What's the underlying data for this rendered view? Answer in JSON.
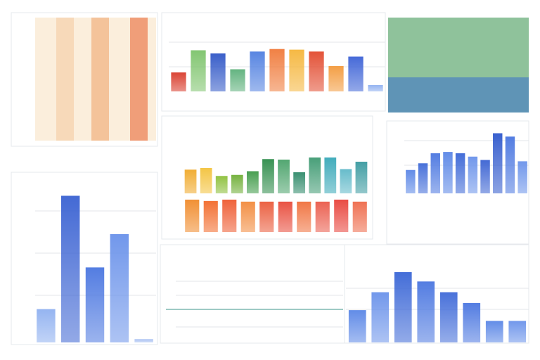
{
  "chart_data": [
    {
      "type": "bar",
      "ylim": [
        0,
        100
      ],
      "values": [
        30,
        65,
        60,
        35,
        63,
        67,
        66,
        63,
        40,
        55,
        10
      ],
      "colors": [
        "#d83a2a",
        "#7cc36a",
        "#2f56c6",
        "#5cb07a",
        "#4f7fe0",
        "#f07a3a",
        "#f5b53a",
        "#e24a2e",
        "#f39a3c",
        "#3c62d6",
        "#8fb0f0"
      ]
    },
    {
      "type": "bar",
      "ylim": [
        0,
        100
      ],
      "values": [
        45,
        48,
        33,
        35,
        42,
        65,
        64,
        40,
        68,
        68,
        46,
        60
      ],
      "colors": [
        "#f0a92a",
        "#f3c23c",
        "#8cbf3a",
        "#6fae36",
        "#3f9a48",
        "#2e8c4a",
        "#4aa26a",
        "#2f8a6a",
        "#3f9a72",
        "#38a8b8",
        "#5fb8c8",
        "#3a9aa0"
      ]
    },
    {
      "type": "bar",
      "ylim": [
        0,
        100
      ],
      "values": [
        96,
        92,
        96,
        90,
        90,
        90,
        90,
        90,
        96,
        90
      ],
      "colors": [
        "#f08a2a",
        "#f26a2a",
        "#ee5a30",
        "#f28a3c",
        "#ea5a3a",
        "#e84a3a",
        "#f0703c",
        "#ea5a4a",
        "#e8423a",
        "#ee6a4a"
      ]
    },
    {
      "type": "bar",
      "ylim": [
        0,
        100
      ],
      "values": [
        35,
        45,
        60,
        62,
        60,
        55,
        50,
        90,
        85,
        48
      ],
      "colors": [
        "#5a86e6",
        "#3f6ad8",
        "#4a76e0",
        "#5a86e6",
        "#3a66d6",
        "#6a92ea",
        "#3a62d2",
        "#2f58cc",
        "#4a76e0",
        "#6a92ea"
      ]
    },
    {
      "type": "bar",
      "ylim": [
        0,
        100
      ],
      "values": [
        20,
        88,
        45,
        65,
        2
      ],
      "colors": [
        "#8fb0f0",
        "#3a62d2",
        "#4a76e0",
        "#6a92ea",
        "#a8c0f2"
      ]
    },
    {
      "type": "bar",
      "ylim": [
        0,
        100
      ],
      "values": [
        45,
        70,
        98,
        85,
        70,
        55,
        30,
        30
      ],
      "colors": [
        "#5a86e6",
        "#6a92ea",
        "#3a66d6",
        "#4a76e0",
        "#3f6ad8",
        "#4a76e0",
        "#5a86e6",
        "#6a92ea"
      ]
    }
  ]
}
